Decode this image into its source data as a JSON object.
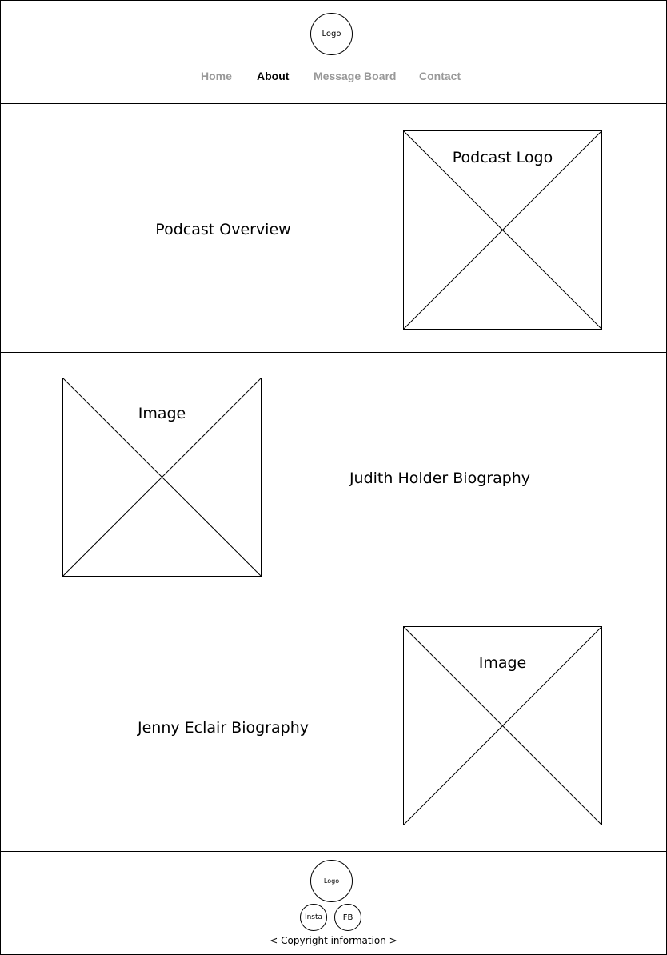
{
  "header": {
    "logo_label": "Logo"
  },
  "nav": {
    "items": [
      {
        "label": "Home",
        "active": false
      },
      {
        "label": "About",
        "active": true
      },
      {
        "label": "Message Board",
        "active": false
      },
      {
        "label": "Contact",
        "active": false
      }
    ]
  },
  "sections": [
    {
      "text": "Podcast Overview",
      "image_label": "Podcast Logo"
    },
    {
      "text": "Judith Holder Biography",
      "image_label": "Image"
    },
    {
      "text": "Jenny Eclair Biography",
      "image_label": "Image"
    }
  ],
  "footer": {
    "logo_label": "Logo",
    "social": [
      {
        "label": "Insta"
      },
      {
        "label": "FB"
      }
    ],
    "copyright": "< Copyright information >"
  }
}
